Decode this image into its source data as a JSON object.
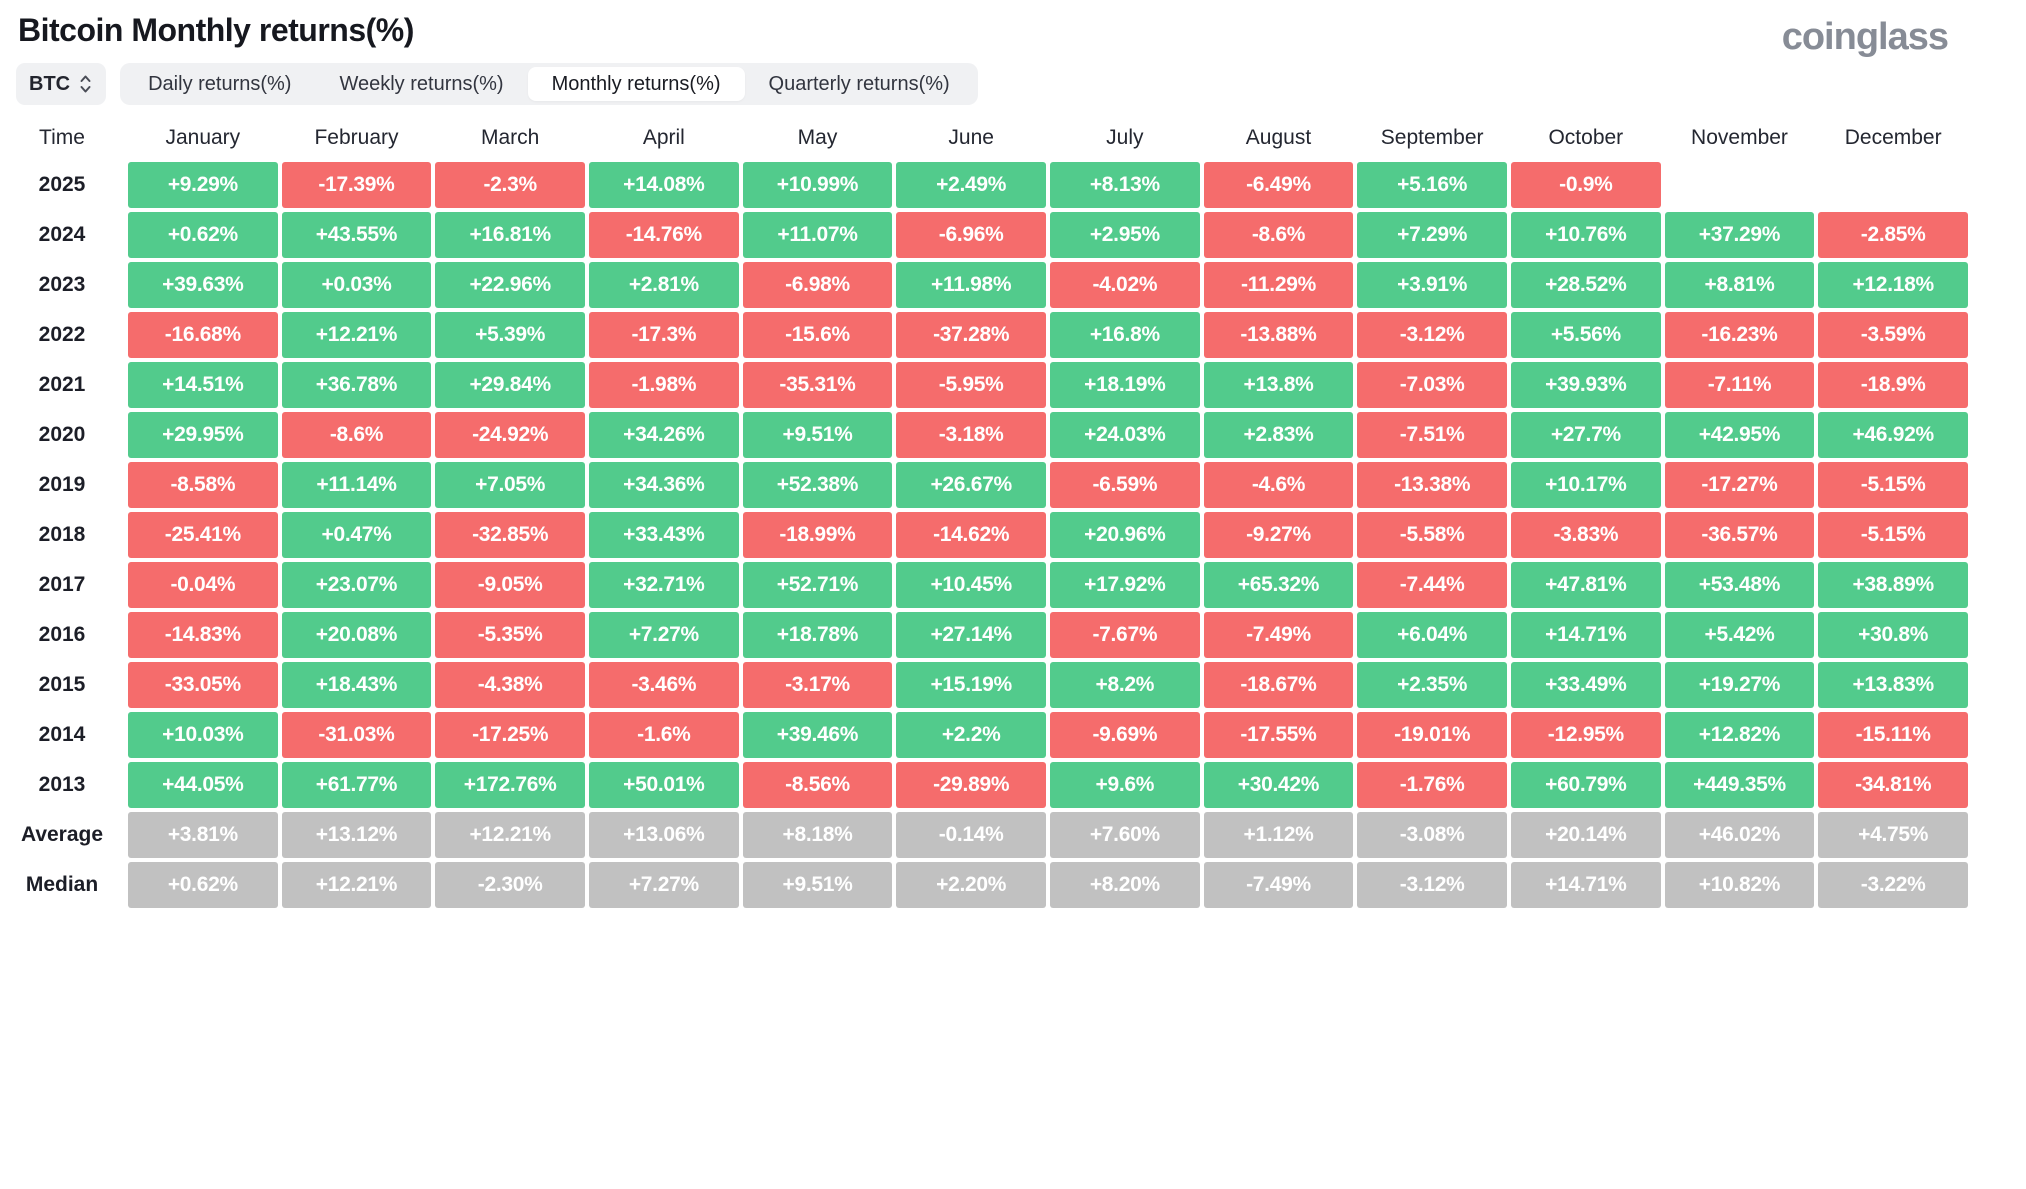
{
  "page": {
    "title": "Bitcoin Monthly returns(%)",
    "brand": "coinglass"
  },
  "toolbar": {
    "coin_selector": {
      "label": "BTC",
      "icon": "updown-chevrons-icon"
    },
    "tabs": [
      {
        "label": "Daily returns(%)",
        "active": false
      },
      {
        "label": "Weekly returns(%)",
        "active": false
      },
      {
        "label": "Monthly returns(%)",
        "active": true
      },
      {
        "label": "Quarterly returns(%)",
        "active": false
      }
    ]
  },
  "colors": {
    "positive": "#52cb8c",
    "negative": "#f56c6c",
    "neutral": "#c1c1c1",
    "brand_gray": "#878c96"
  },
  "chart_data": {
    "type": "heatmap",
    "title": "Bitcoin Monthly returns(%)",
    "columns": [
      "Time",
      "January",
      "February",
      "March",
      "April",
      "May",
      "June",
      "July",
      "August",
      "September",
      "October",
      "November",
      "December"
    ],
    "legend": "green = positive monthly return, red = negative monthly return, gray = summary rows",
    "rows": [
      {
        "label": "2025",
        "summary": false,
        "values": [
          "+9.29%",
          "-17.39%",
          "-2.3%",
          "+14.08%",
          "+10.99%",
          "+2.49%",
          "+8.13%",
          "-6.49%",
          "+5.16%",
          "-0.9%",
          "",
          ""
        ]
      },
      {
        "label": "2024",
        "summary": false,
        "values": [
          "+0.62%",
          "+43.55%",
          "+16.81%",
          "-14.76%",
          "+11.07%",
          "-6.96%",
          "+2.95%",
          "-8.6%",
          "+7.29%",
          "+10.76%",
          "+37.29%",
          "-2.85%"
        ]
      },
      {
        "label": "2023",
        "summary": false,
        "values": [
          "+39.63%",
          "+0.03%",
          "+22.96%",
          "+2.81%",
          "-6.98%",
          "+11.98%",
          "-4.02%",
          "-11.29%",
          "+3.91%",
          "+28.52%",
          "+8.81%",
          "+12.18%"
        ]
      },
      {
        "label": "2022",
        "summary": false,
        "values": [
          "-16.68%",
          "+12.21%",
          "+5.39%",
          "-17.3%",
          "-15.6%",
          "-37.28%",
          "+16.8%",
          "-13.88%",
          "-3.12%",
          "+5.56%",
          "-16.23%",
          "-3.59%"
        ]
      },
      {
        "label": "2021",
        "summary": false,
        "values": [
          "+14.51%",
          "+36.78%",
          "+29.84%",
          "-1.98%",
          "-35.31%",
          "-5.95%",
          "+18.19%",
          "+13.8%",
          "-7.03%",
          "+39.93%",
          "-7.11%",
          "-18.9%"
        ]
      },
      {
        "label": "2020",
        "summary": false,
        "values": [
          "+29.95%",
          "-8.6%",
          "-24.92%",
          "+34.26%",
          "+9.51%",
          "-3.18%",
          "+24.03%",
          "+2.83%",
          "-7.51%",
          "+27.7%",
          "+42.95%",
          "+46.92%"
        ]
      },
      {
        "label": "2019",
        "summary": false,
        "values": [
          "-8.58%",
          "+11.14%",
          "+7.05%",
          "+34.36%",
          "+52.38%",
          "+26.67%",
          "-6.59%",
          "-4.6%",
          "-13.38%",
          "+10.17%",
          "-17.27%",
          "-5.15%"
        ]
      },
      {
        "label": "2018",
        "summary": false,
        "values": [
          "-25.41%",
          "+0.47%",
          "-32.85%",
          "+33.43%",
          "-18.99%",
          "-14.62%",
          "+20.96%",
          "-9.27%",
          "-5.58%",
          "-3.83%",
          "-36.57%",
          "-5.15%"
        ]
      },
      {
        "label": "2017",
        "summary": false,
        "values": [
          "-0.04%",
          "+23.07%",
          "-9.05%",
          "+32.71%",
          "+52.71%",
          "+10.45%",
          "+17.92%",
          "+65.32%",
          "-7.44%",
          "+47.81%",
          "+53.48%",
          "+38.89%"
        ]
      },
      {
        "label": "2016",
        "summary": false,
        "values": [
          "-14.83%",
          "+20.08%",
          "-5.35%",
          "+7.27%",
          "+18.78%",
          "+27.14%",
          "-7.67%",
          "-7.49%",
          "+6.04%",
          "+14.71%",
          "+5.42%",
          "+30.8%"
        ]
      },
      {
        "label": "2015",
        "summary": false,
        "values": [
          "-33.05%",
          "+18.43%",
          "-4.38%",
          "-3.46%",
          "-3.17%",
          "+15.19%",
          "+8.2%",
          "-18.67%",
          "+2.35%",
          "+33.49%",
          "+19.27%",
          "+13.83%"
        ]
      },
      {
        "label": "2014",
        "summary": false,
        "values": [
          "+10.03%",
          "-31.03%",
          "-17.25%",
          "-1.6%",
          "+39.46%",
          "+2.2%",
          "-9.69%",
          "-17.55%",
          "-19.01%",
          "-12.95%",
          "+12.82%",
          "-15.11%"
        ]
      },
      {
        "label": "2013",
        "summary": false,
        "values": [
          "+44.05%",
          "+61.77%",
          "+172.76%",
          "+50.01%",
          "-8.56%",
          "-29.89%",
          "+9.6%",
          "+30.42%",
          "-1.76%",
          "+60.79%",
          "+449.35%",
          "-34.81%"
        ]
      },
      {
        "label": "Average",
        "summary": true,
        "values": [
          "+3.81%",
          "+13.12%",
          "+12.21%",
          "+13.06%",
          "+8.18%",
          "-0.14%",
          "+7.60%",
          "+1.12%",
          "-3.08%",
          "+20.14%",
          "+46.02%",
          "+4.75%"
        ]
      },
      {
        "label": "Median",
        "summary": true,
        "values": [
          "+0.62%",
          "+12.21%",
          "-2.30%",
          "+7.27%",
          "+9.51%",
          "+2.20%",
          "+8.20%",
          "-7.49%",
          "-3.12%",
          "+14.71%",
          "+10.82%",
          "-3.22%"
        ]
      }
    ]
  }
}
